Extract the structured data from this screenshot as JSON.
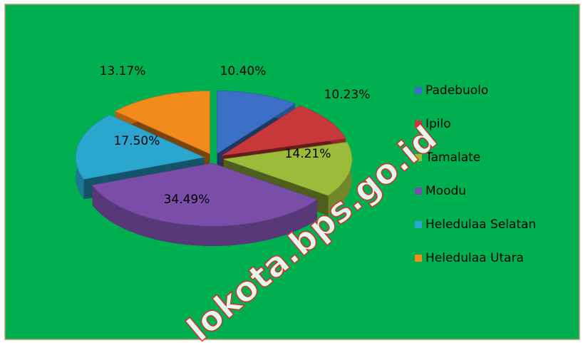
{
  "chart_data": {
    "type": "pie",
    "categories": [
      "Padebuolo",
      "Ipilo",
      "Tamalate",
      "Moodu",
      "Heledulaa Selatan",
      "Heledulaa Utara"
    ],
    "values": [
      10.4,
      10.23,
      14.21,
      34.49,
      17.5,
      13.17
    ],
    "value_labels": [
      "10.40%",
      "10.23%",
      "14.21%",
      "34.49%",
      "17.50%",
      "13.17%"
    ],
    "colors": [
      "#3b70c6",
      "#c8373a",
      "#9cbb3a",
      "#7a4ea8",
      "#2aa6cf",
      "#f28a1c"
    ],
    "legend": "right",
    "watermark": "lokota.bps.go.id"
  }
}
